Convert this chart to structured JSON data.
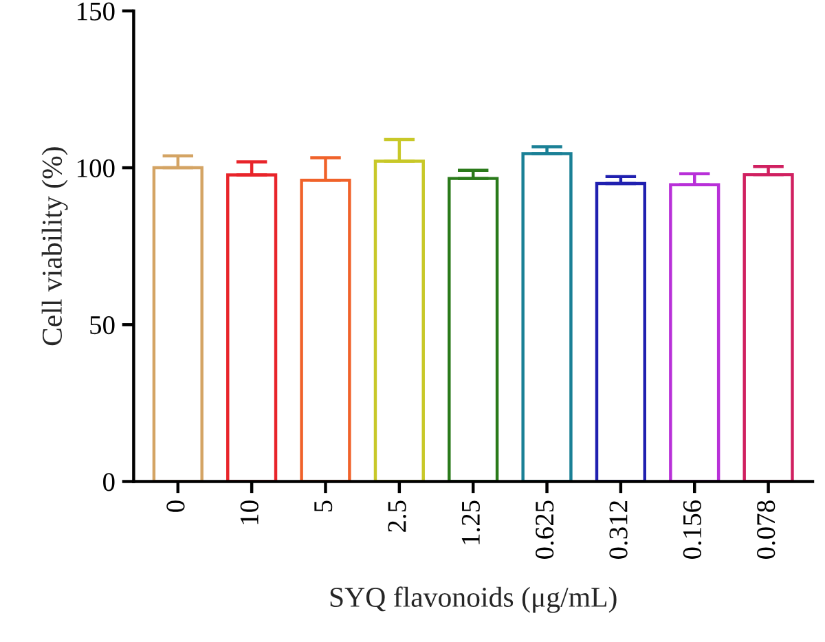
{
  "chart_data": {
    "type": "bar",
    "xlabel": "SYQ flavonoids (μg/mL)",
    "ylabel": "Cell viability (%)",
    "categories": [
      "0",
      "10",
      "5",
      "2.5",
      "1.25",
      "0.625",
      "0.312",
      "0.156",
      "0.078"
    ],
    "values": [
      100,
      97.7,
      96.0,
      102.1,
      96.6,
      104.5,
      95.0,
      94.6,
      97.8
    ],
    "errors": [
      [
        100,
        103.8
      ],
      [
        97.7,
        101.9
      ],
      [
        96.0,
        103.2
      ],
      [
        102.1,
        109.0
      ],
      [
        96.6,
        99.2
      ],
      [
        104.5,
        106.7
      ],
      [
        95.0,
        97.2
      ],
      [
        94.6,
        98.1
      ],
      [
        97.8,
        100.4
      ]
    ],
    "colors": [
      "#d4a464",
      "#e8242a",
      "#f0622a",
      "#c8c828",
      "#2a7a1a",
      "#1a8096",
      "#2020b0",
      "#b830d8",
      "#d02060"
    ],
    "ylim": [
      0,
      150
    ],
    "yticks": [
      0,
      50,
      100,
      150
    ],
    "grid": false,
    "legend": false
  }
}
